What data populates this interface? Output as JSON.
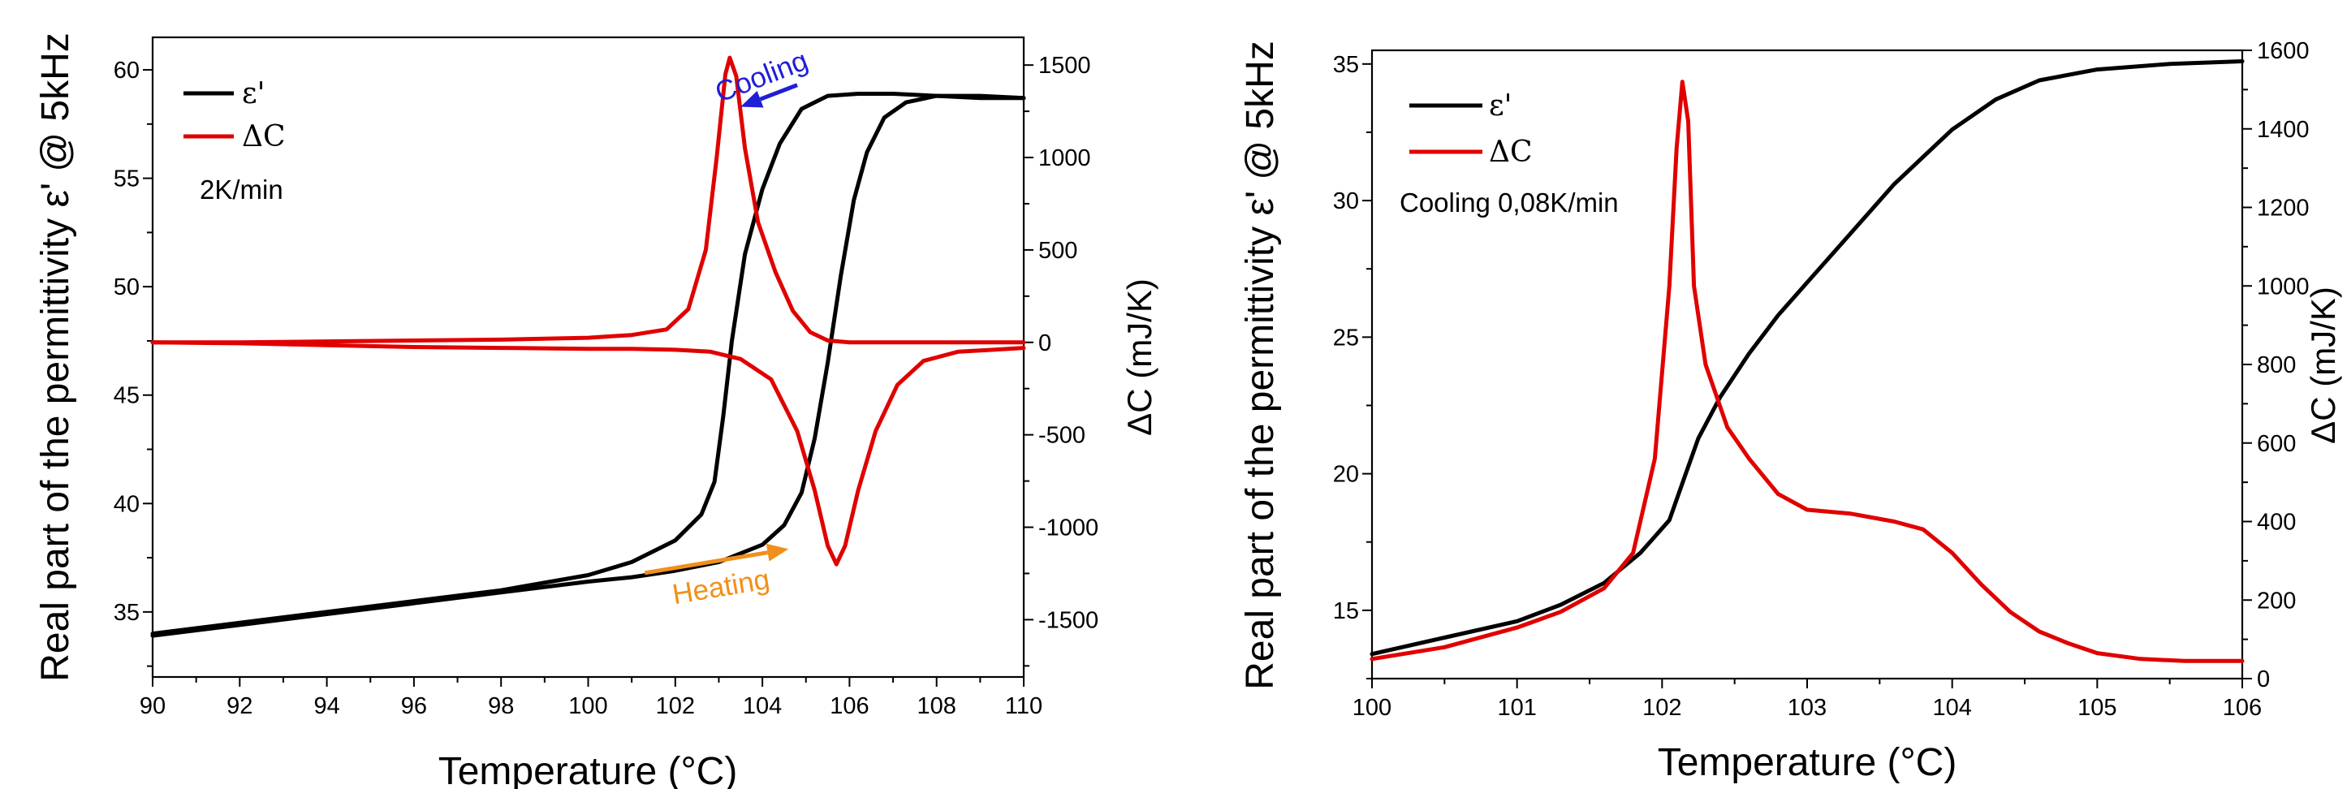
{
  "chart_data": [
    {
      "type": "line",
      "xlabel": "Temperature (°C)",
      "ylabel": "Real part of the permittivity ε' @ 5kHz",
      "y2label": "ΔC (mJ/K)",
      "xlim": [
        90,
        110
      ],
      "ylim": [
        32,
        61.5
      ],
      "y2lim": [
        -1810,
        1650
      ],
      "xticks": [
        90,
        92,
        94,
        96,
        98,
        100,
        102,
        104,
        106,
        108,
        110
      ],
      "yticks": [
        35,
        40,
        45,
        50,
        55,
        60
      ],
      "y2ticks": [
        -1500,
        -1000,
        -500,
        0,
        500,
        1000,
        1500
      ],
      "legend_position": "top-left",
      "legend": [
        "ε'",
        "ΔC"
      ],
      "annotation": "2K/min",
      "arrows": [
        {
          "label": "Cooling",
          "color": "#1f1fd6",
          "from": [
            104.8,
            59.3
          ],
          "to": [
            103.5,
            58.3
          ]
        },
        {
          "label": "Heating",
          "color": "#f0901a",
          "from": [
            101.3,
            36.8
          ],
          "to": [
            104.6,
            37.9
          ]
        }
      ],
      "series": [
        {
          "name": "ε'",
          "axis": "left",
          "color": "#000000",
          "x": [
            90,
            92,
            94,
            96,
            98,
            100,
            101,
            102,
            102.6,
            102.9,
            103.1,
            103.3,
            103.6,
            104,
            104.4,
            104.9,
            105.5,
            106.2,
            107,
            108,
            109,
            110
          ],
          "y": [
            34.0,
            34.5,
            35.0,
            35.5,
            36.0,
            36.7,
            37.3,
            38.3,
            39.5,
            41.0,
            44.0,
            47.5,
            51.5,
            54.5,
            56.6,
            58.2,
            58.8,
            58.9,
            58.9,
            58.8,
            58.7,
            58.7
          ]
        },
        {
          "name": "ε'",
          "axis": "left",
          "color": "#000000",
          "x": [
            90,
            92,
            94,
            96,
            98,
            100,
            101,
            102,
            103,
            104,
            104.5,
            104.9,
            105.2,
            105.5,
            105.8,
            106.1,
            106.4,
            106.8,
            107.3,
            108,
            109,
            110
          ],
          "y": [
            33.9,
            34.4,
            34.9,
            35.4,
            35.9,
            36.4,
            36.6,
            36.9,
            37.3,
            38.1,
            39.0,
            40.5,
            43.0,
            46.5,
            50.5,
            54.0,
            56.2,
            57.8,
            58.5,
            58.8,
            58.8,
            58.7
          ]
        },
        {
          "name": "ΔC",
          "axis": "right",
          "color": "#e00000",
          "x": [
            90,
            92,
            94,
            96,
            98,
            100,
            101,
            101.8,
            102.3,
            102.7,
            102.95,
            103.15,
            103.25,
            103.4,
            103.6,
            103.9,
            104.3,
            104.7,
            105.1,
            105.5,
            106,
            107,
            108,
            110
          ],
          "y": [
            0,
            0,
            5,
            10,
            15,
            25,
            40,
            70,
            180,
            500,
            1000,
            1450,
            1540,
            1440,
            1050,
            650,
            380,
            170,
            55,
            10,
            0,
            0,
            0,
            0
          ]
        },
        {
          "name": "ΔC",
          "axis": "right",
          "color": "#e00000",
          "x": [
            90,
            92,
            94,
            96,
            98,
            100,
            101,
            102,
            102.8,
            103.5,
            104.2,
            104.8,
            105.2,
            105.5,
            105.7,
            105.9,
            106.2,
            106.6,
            107.1,
            107.7,
            108.5,
            109.3,
            110
          ],
          "y": [
            0,
            -5,
            -15,
            -25,
            -30,
            -35,
            -35,
            -40,
            -50,
            -90,
            -200,
            -480,
            -800,
            -1100,
            -1200,
            -1100,
            -800,
            -480,
            -230,
            -100,
            -50,
            -40,
            -30
          ]
        }
      ]
    },
    {
      "type": "line",
      "xlabel": "Temperature (°C)",
      "ylabel": "Real part of the permittivity ε' @ 5kHz",
      "y2label": "ΔC (mJ/K)",
      "xlim": [
        100,
        106
      ],
      "ylim": [
        12.5,
        35.5
      ],
      "y2lim": [
        0,
        1600
      ],
      "xticks": [
        100,
        101,
        102,
        103,
        104,
        105,
        106
      ],
      "yticks": [
        15,
        20,
        25,
        30,
        35
      ],
      "y2ticks": [
        0,
        200,
        400,
        600,
        800,
        1000,
        1200,
        1400,
        1600
      ],
      "legend_position": "top-left",
      "legend": [
        "ε'",
        "ΔC"
      ],
      "annotation": "Cooling 0,08K/min",
      "series": [
        {
          "name": "ε'",
          "axis": "left",
          "color": "#000000",
          "x": [
            100,
            100.5,
            101,
            101.3,
            101.6,
            101.85,
            102.05,
            102.15,
            102.25,
            102.4,
            102.6,
            102.8,
            103,
            103.3,
            103.6,
            104,
            104.3,
            104.6,
            105,
            105.5,
            106
          ],
          "y": [
            13.4,
            14.0,
            14.6,
            15.2,
            16.0,
            17.1,
            18.3,
            19.8,
            21.3,
            22.8,
            24.4,
            25.8,
            27.0,
            28.8,
            30.6,
            32.6,
            33.7,
            34.4,
            34.8,
            35.0,
            35.1
          ]
        },
        {
          "name": "ΔC",
          "axis": "right",
          "color": "#e00000",
          "x": [
            100,
            100.5,
            101,
            101.3,
            101.6,
            101.8,
            101.95,
            102.05,
            102.1,
            102.14,
            102.18,
            102.22,
            102.3,
            102.45,
            102.6,
            102.8,
            103,
            103.3,
            103.6,
            103.8,
            104,
            104.2,
            104.4,
            104.6,
            104.8,
            105,
            105.3,
            105.6,
            106
          ],
          "y": [
            50,
            80,
            130,
            170,
            230,
            320,
            560,
            1000,
            1350,
            1520,
            1420,
            1000,
            800,
            640,
            560,
            470,
            430,
            420,
            400,
            380,
            320,
            240,
            170,
            120,
            90,
            65,
            50,
            45,
            45
          ]
        }
      ]
    }
  ]
}
